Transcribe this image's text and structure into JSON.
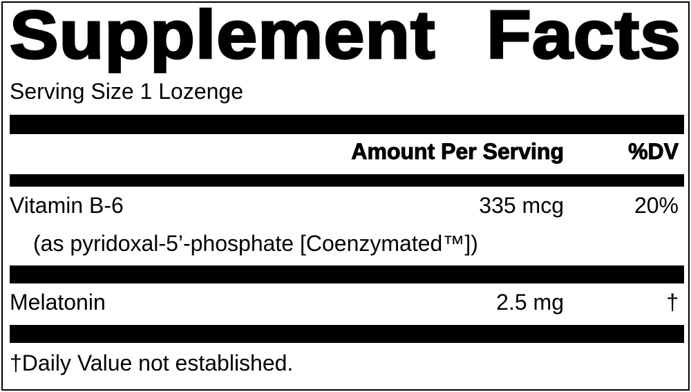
{
  "title": "Supplement Facts",
  "serving_size": "Serving Size 1 Lozenge",
  "header": {
    "amount": "Amount Per Serving",
    "dv": "%DV"
  },
  "rows": [
    {
      "name": "Vitamin B-6",
      "amount": "335 mcg",
      "dv": "20%",
      "sub": "(as pyridoxal-5’-phosphate [Coenzymated™])"
    },
    {
      "name": "Melatonin",
      "amount": "2.5 mg",
      "dv": "†"
    }
  ],
  "footnote": "†Daily Value not established."
}
